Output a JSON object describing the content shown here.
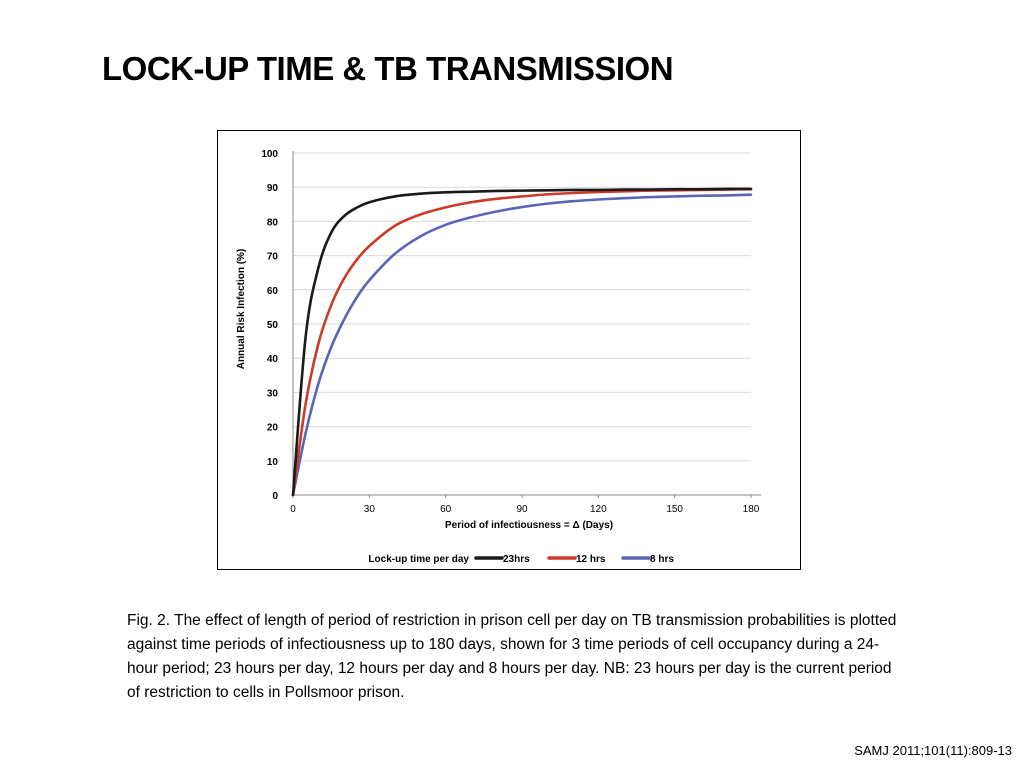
{
  "slide": {
    "title": "LOCK-UP TIME & TB TRANSMISSION",
    "caption": "Fig. 2. The effect of length of period of restriction in prison cell per day on TB transmission probabilities is plotted against time periods of infectiousness up to 180 days, shown for 3 time periods of cell occupancy during a 24-hour period; 23 hours per day, 12 hours per day and 8 hours per day. NB: 23 hours per day is the current period of restriction to cells in Pollsmoor prison.",
    "citation": "SAMJ 2011;101(11):809-13"
  },
  "chart_data": {
    "type": "line",
    "xlabel": "Period of infectiousness = Δ (Days)",
    "ylabel": "Annual Risk Infection (%)",
    "xlim": [
      0,
      180
    ],
    "ylim": [
      0,
      100
    ],
    "x_ticks": [
      "0",
      "30",
      "60",
      "90",
      "120",
      "150",
      "180"
    ],
    "y_ticks": [
      "0",
      "10",
      "20",
      "30",
      "40",
      "50",
      "60",
      "70",
      "80",
      "90",
      "100"
    ],
    "grid": "horizontal",
    "legend": {
      "title": "Lock-up time per day",
      "placement": "bottom"
    },
    "x": [
      0,
      5,
      10,
      15,
      20,
      25,
      30,
      40,
      50,
      60,
      70,
      80,
      90,
      100,
      110,
      120,
      130,
      140,
      150,
      160,
      170,
      180
    ],
    "series": [
      {
        "name": "23hrs",
        "color": "#1a1a1a",
        "values": [
          0,
          46.5,
          66.5,
          76.7,
          81.5,
          84.0,
          85.6,
          87.3,
          88.1,
          88.5,
          88.7,
          88.9,
          89.0,
          89.1,
          89.2,
          89.2,
          89.3,
          89.3,
          89.4,
          89.4,
          89.5,
          89.5
        ]
      },
      {
        "name": "12 hrs",
        "color": "#cc3a28",
        "values": [
          0,
          26.8,
          44.3,
          55.5,
          63.2,
          68.7,
          72.8,
          78.7,
          82.0,
          84.1,
          85.6,
          86.6,
          87.3,
          87.9,
          88.3,
          88.6,
          88.8,
          89.0,
          89.1,
          89.2,
          89.3,
          89.4
        ]
      },
      {
        "name": "8 hrs",
        "color": "#5a66b5",
        "values": [
          0,
          18.2,
          32.6,
          43.2,
          51.2,
          57.7,
          62.8,
          70.5,
          75.6,
          79.0,
          81.2,
          82.9,
          84.2,
          85.2,
          85.9,
          86.4,
          86.8,
          87.1,
          87.3,
          87.5,
          87.6,
          87.8
        ]
      }
    ]
  }
}
